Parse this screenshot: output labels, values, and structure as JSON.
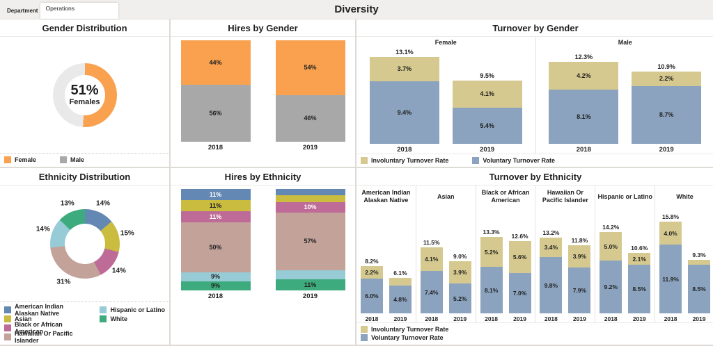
{
  "header": {
    "filter_label": "Department",
    "filter_tab": "Operations",
    "title": "Diversity"
  },
  "chart_data": [
    {
      "id": "gender-distribution",
      "type": "pie",
      "title": "Gender Distribution",
      "center_value": "51%",
      "center_label": "Females",
      "show_slice_labels": false,
      "slices": [
        {
          "label": "Female",
          "value": 51,
          "pct_label": "51%",
          "color": "#F9A14F"
        },
        {
          "label": "Male",
          "value": 49,
          "pct_label": "",
          "color": "#E9E9E9"
        }
      ],
      "legend": {
        "layout": "row",
        "items": [
          {
            "label": "Female",
            "color": "#F9A14F"
          },
          {
            "label": "Male",
            "color": "#A8A8A8"
          }
        ]
      }
    },
    {
      "id": "hires-by-gender",
      "type": "bar",
      "title": "Hires by Gender",
      "categories": [
        "2018",
        "2019"
      ],
      "series": [
        {
          "name": "Female",
          "color": "#F9A14F",
          "text_color": "#1f1f1f",
          "values": [
            44,
            54
          ],
          "labels": [
            "44%",
            "54%"
          ]
        },
        {
          "name": "Male",
          "color": "#A8A8A8",
          "text_color": "#1f1f1f",
          "values": [
            56,
            46
          ],
          "labels": [
            "56%",
            "46%"
          ]
        }
      ]
    },
    {
      "id": "turnover-by-gender",
      "type": "bar",
      "title": "Turnover by Gender",
      "ylim": [
        0,
        14.4
      ],
      "colors": {
        "involuntary": "#D5C98F",
        "voluntary": "#8BA3BE"
      },
      "groups": [
        {
          "name": "Female",
          "bars": [
            {
              "category": "2018",
              "total_label": "13.1%",
              "segments": [
                {
                  "name": "Involuntary Turnover Rate",
                  "value": 3.7,
                  "label": "3.7%"
                },
                {
                  "name": "Voluntary Turnover Rate",
                  "value": 9.4,
                  "label": "9.4%"
                }
              ]
            },
            {
              "category": "2019",
              "total_label": "9.5%",
              "segments": [
                {
                  "name": "Involuntary Turnover Rate",
                  "value": 4.1,
                  "label": "4.1%"
                },
                {
                  "name": "Voluntary Turnover Rate",
                  "value": 5.4,
                  "label": "5.4%"
                }
              ]
            }
          ]
        },
        {
          "name": "Male",
          "bars": [
            {
              "category": "2018",
              "total_label": "12.3%",
              "segments": [
                {
                  "name": "Involuntary Turnover Rate",
                  "value": 4.2,
                  "label": "4.2%"
                },
                {
                  "name": "Voluntary Turnover Rate",
                  "value": 8.1,
                  "label": "8.1%"
                }
              ]
            },
            {
              "category": "2019",
              "total_label": "10.9%",
              "segments": [
                {
                  "name": "Involuntary Turnover Rate",
                  "value": 2.2,
                  "label": "2.2%"
                },
                {
                  "name": "Voluntary Turnover Rate",
                  "value": 8.7,
                  "label": "8.7%"
                }
              ]
            }
          ]
        }
      ],
      "legend": {
        "layout": "row",
        "items": [
          {
            "label": "Involuntary Turnover Rate",
            "color": "#D5C98F"
          },
          {
            "label": "Voluntary Turnover Rate",
            "color": "#8BA3BE"
          }
        ]
      }
    },
    {
      "id": "ethnicity-distribution",
      "type": "pie",
      "title": "Ethnicity Distribution",
      "center_value": "",
      "center_label": "",
      "show_slice_labels": true,
      "slices": [
        {
          "label": "American Indian Alaskan Native",
          "value": 14,
          "pct_label": "14%",
          "color": "#6388B4"
        },
        {
          "label": "Asian",
          "value": 15,
          "pct_label": "15%",
          "color": "#C9BC3F"
        },
        {
          "label": "Black or African American",
          "value": 14,
          "pct_label": "14%",
          "color": "#BE6C97"
        },
        {
          "label": "Hawaiian Or Pacific Islander",
          "value": 31,
          "pct_label": "31%",
          "color": "#C3A29A"
        },
        {
          "label": "Hispanic or Latino",
          "value": 14,
          "pct_label": "14%",
          "color": "#97CBD5"
        },
        {
          "label": "White",
          "value": 13,
          "pct_label": "13%",
          "color": "#3DAB7D"
        }
      ],
      "legend": {
        "layout": "two-col",
        "items": [
          {
            "label": "American Indian Alaskan Native",
            "color": "#6388B4"
          },
          {
            "label": "Asian",
            "color": "#C9BC3F"
          },
          {
            "label": "Black or African American",
            "color": "#BE6C97"
          },
          {
            "label": "Hawaiian Or Pacific Islander",
            "color": "#C3A29A"
          },
          {
            "label": "Hispanic or Latino",
            "color": "#97CBD5"
          },
          {
            "label": "White",
            "color": "#3DAB7D"
          }
        ]
      }
    },
    {
      "id": "hires-by-ethnicity",
      "type": "bar",
      "title": "Hires by Ethnicity",
      "categories": [
        "2018",
        "2019"
      ],
      "series": [
        {
          "name": "American Indian Alaskan Native",
          "color": "#6388B4",
          "text_color": "#ffffff",
          "values": [
            11,
            6
          ],
          "labels": [
            "11%",
            ""
          ]
        },
        {
          "name": "Asian",
          "color": "#C9BC3F",
          "text_color": "#1f1f1f",
          "values": [
            11,
            7
          ],
          "labels": [
            "11%",
            ""
          ]
        },
        {
          "name": "Black or African American",
          "color": "#BE6C97",
          "text_color": "#ffffff",
          "values": [
            11,
            10
          ],
          "labels": [
            "11%",
            "10%"
          ]
        },
        {
          "name": "Hawaiian Or Pacific Islander",
          "color": "#C3A29A",
          "text_color": "#1f1f1f",
          "values": [
            50,
            57
          ],
          "labels": [
            "50%",
            "57%"
          ]
        },
        {
          "name": "Hispanic or Latino",
          "color": "#97CBD5",
          "text_color": "#1f1f1f",
          "values": [
            9,
            9
          ],
          "labels": [
            "9%",
            ""
          ]
        },
        {
          "name": "White",
          "color": "#3DAB7D",
          "text_color": "#1f1f1f",
          "values": [
            9,
            11
          ],
          "labels": [
            "9%",
            "11%"
          ]
        }
      ]
    },
    {
      "id": "turnover-by-ethnicity",
      "type": "bar",
      "title": "Turnover by Ethnicity",
      "ylim": [
        0,
        16.4
      ],
      "colors": {
        "involuntary": "#D5C98F",
        "voluntary": "#8BA3BE"
      },
      "groups": [
        {
          "name": "American Indian Alaskan Native",
          "bars": [
            {
              "category": "2018",
              "total_label": "8.2%",
              "segments": [
                {
                  "name": "Involuntary Turnover Rate",
                  "value": 2.2,
                  "label": "2.2%"
                },
                {
                  "name": "Voluntary Turnover Rate",
                  "value": 6.0,
                  "label": "6.0%"
                }
              ]
            },
            {
              "category": "2019",
              "total_label": "6.1%",
              "segments": [
                {
                  "name": "Involuntary Turnover Rate",
                  "value": 1.3,
                  "label": ""
                },
                {
                  "name": "Voluntary Turnover Rate",
                  "value": 4.8,
                  "label": "4.8%"
                }
              ]
            }
          ]
        },
        {
          "name": "Asian",
          "bars": [
            {
              "category": "2018",
              "total_label": "11.5%",
              "segments": [
                {
                  "name": "Involuntary Turnover Rate",
                  "value": 4.1,
                  "label": "4.1%"
                },
                {
                  "name": "Voluntary Turnover Rate",
                  "value": 7.4,
                  "label": "7.4%"
                }
              ]
            },
            {
              "category": "2019",
              "total_label": "9.0%",
              "segments": [
                {
                  "name": "Involuntary Turnover Rate",
                  "value": 3.9,
                  "label": "3.9%"
                },
                {
                  "name": "Voluntary Turnover Rate",
                  "value": 5.2,
                  "label": "5.2%"
                }
              ]
            }
          ]
        },
        {
          "name": "Black or African American",
          "bars": [
            {
              "category": "2018",
              "total_label": "13.3%",
              "segments": [
                {
                  "name": "Involuntary Turnover Rate",
                  "value": 5.2,
                  "label": "5.2%"
                },
                {
                  "name": "Voluntary Turnover Rate",
                  "value": 8.1,
                  "label": "8.1%"
                }
              ]
            },
            {
              "category": "2019",
              "total_label": "12.6%",
              "segments": [
                {
                  "name": "Involuntary Turnover Rate",
                  "value": 5.6,
                  "label": "5.6%"
                },
                {
                  "name": "Voluntary Turnover Rate",
                  "value": 7.0,
                  "label": "7.0%"
                }
              ]
            }
          ]
        },
        {
          "name": "Hawaiian Or Pacific Islander",
          "bars": [
            {
              "category": "2018",
              "total_label": "13.2%",
              "segments": [
                {
                  "name": "Involuntary Turnover Rate",
                  "value": 3.4,
                  "label": "3.4%"
                },
                {
                  "name": "Voluntary Turnover Rate",
                  "value": 9.8,
                  "label": "9.8%"
                }
              ]
            },
            {
              "category": "2019",
              "total_label": "11.8%",
              "segments": [
                {
                  "name": "Involuntary Turnover Rate",
                  "value": 3.9,
                  "label": "3.9%"
                },
                {
                  "name": "Voluntary Turnover Rate",
                  "value": 7.9,
                  "label": "7.9%"
                }
              ]
            }
          ]
        },
        {
          "name": "Hispanic or Latino",
          "bars": [
            {
              "category": "2018",
              "total_label": "14.2%",
              "segments": [
                {
                  "name": "Involuntary Turnover Rate",
                  "value": 5.0,
                  "label": "5.0%"
                },
                {
                  "name": "Voluntary Turnover Rate",
                  "value": 9.2,
                  "label": "9.2%"
                }
              ]
            },
            {
              "category": "2019",
              "total_label": "10.6%",
              "segments": [
                {
                  "name": "Involuntary Turnover Rate",
                  "value": 2.1,
                  "label": "2.1%"
                },
                {
                  "name": "Voluntary Turnover Rate",
                  "value": 8.5,
                  "label": "8.5%"
                }
              ]
            }
          ]
        },
        {
          "name": "White",
          "bars": [
            {
              "category": "2018",
              "total_label": "15.8%",
              "segments": [
                {
                  "name": "Involuntary Turnover Rate",
                  "value": 4.0,
                  "label": "4.0%"
                },
                {
                  "name": "Voluntary Turnover Rate",
                  "value": 11.9,
                  "label": "11.9%"
                }
              ]
            },
            {
              "category": "2019",
              "total_label": "9.3%",
              "segments": [
                {
                  "name": "Involuntary Turnover Rate",
                  "value": 0.8,
                  "label": ""
                },
                {
                  "name": "Voluntary Turnover Rate",
                  "value": 8.5,
                  "label": "8.5%"
                }
              ]
            }
          ]
        }
      ],
      "legend": {
        "layout": "column",
        "items": [
          {
            "label": "Involuntary Turnover Rate",
            "color": "#D5C98F"
          },
          {
            "label": "Voluntary Turnover Rate",
            "color": "#8BA3BE"
          }
        ]
      }
    }
  ]
}
